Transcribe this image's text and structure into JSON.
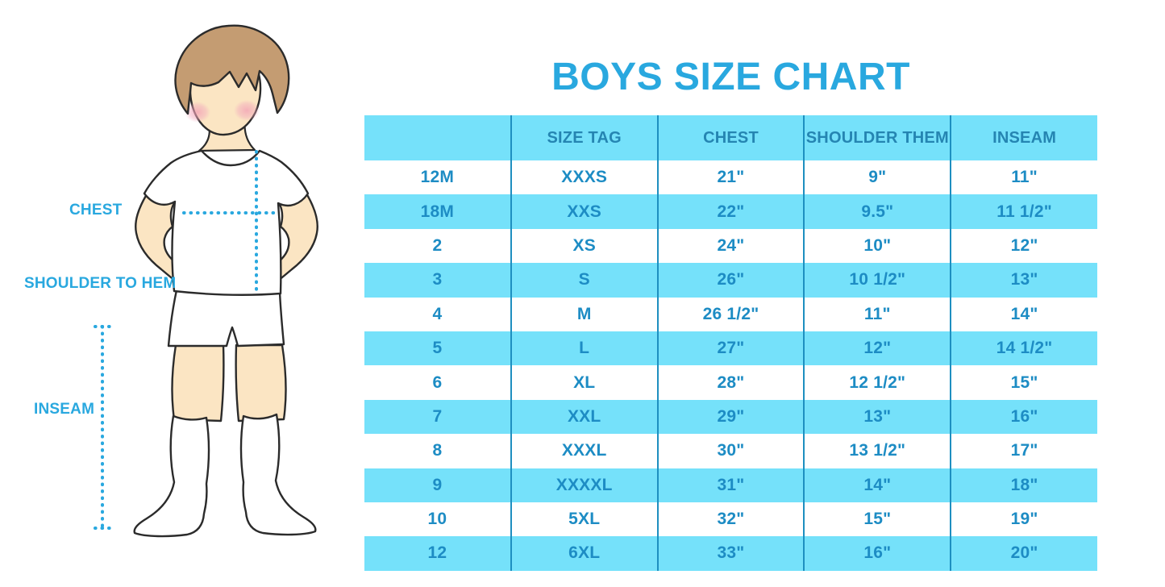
{
  "title": "BOYS SIZE CHART",
  "figure": {
    "description": "boy-illustration",
    "labels": {
      "chest": "CHEST",
      "shoulder_to_hem": "SHOULDER TO HEM",
      "inseam": "INSEAM"
    }
  },
  "table": {
    "headers": [
      "",
      "SIZE TAG",
      "CHEST",
      "SHOULDER THEM",
      "INSEAM"
    ],
    "rows": [
      [
        "12M",
        "XXXS",
        "21\"",
        "9\"",
        "11\""
      ],
      [
        "18M",
        "XXS",
        "22\"",
        "9.5\"",
        "11 1/2\""
      ],
      [
        "2",
        "XS",
        "24\"",
        "10\"",
        "12\""
      ],
      [
        "3",
        "S",
        "26\"",
        "10 1/2\"",
        "13\""
      ],
      [
        "4",
        "M",
        "26 1/2\"",
        "11\"",
        "14\""
      ],
      [
        "5",
        "L",
        "27\"",
        "12\"",
        "14 1/2\""
      ],
      [
        "6",
        "XL",
        "28\"",
        "12 1/2\"",
        "15\""
      ],
      [
        "7",
        "XXL",
        "29\"",
        "13\"",
        "16\""
      ],
      [
        "8",
        "XXXL",
        "30\"",
        "13 1/2\"",
        "17\""
      ],
      [
        "9",
        "XXXXL",
        "31\"",
        "14\"",
        "18\""
      ],
      [
        "10",
        "5XL",
        "32\"",
        "15\"",
        "19\""
      ],
      [
        "12",
        "6XL",
        "33\"",
        "16\"",
        "20\""
      ]
    ]
  },
  "chart_data": {
    "type": "table",
    "title": "BOYS SIZE CHART",
    "columns": [
      "",
      "SIZE TAG",
      "CHEST",
      "SHOULDER THEM",
      "INSEAM"
    ],
    "rows": [
      [
        "12M",
        "XXXS",
        "21\"",
        "9\"",
        "11\""
      ],
      [
        "18M",
        "XXS",
        "22\"",
        "9.5\"",
        "11 1/2\""
      ],
      [
        "2",
        "XS",
        "24\"",
        "10\"",
        "12\""
      ],
      [
        "3",
        "S",
        "26\"",
        "10 1/2\"",
        "13\""
      ],
      [
        "4",
        "M",
        "26 1/2\"",
        "11\"",
        "14\""
      ],
      [
        "5",
        "L",
        "27\"",
        "12\"",
        "14 1/2\""
      ],
      [
        "6",
        "XL",
        "28\"",
        "12 1/2\"",
        "15\""
      ],
      [
        "7",
        "XXL",
        "29\"",
        "13\"",
        "16\""
      ],
      [
        "8",
        "XXXL",
        "30\"",
        "13 1/2\"",
        "17\""
      ],
      [
        "9",
        "XXXXL",
        "31\"",
        "14\"",
        "18\""
      ],
      [
        "10",
        "5XL",
        "32\"",
        "15\"",
        "19\""
      ],
      [
        "12",
        "6XL",
        "33\"",
        "16\"",
        "20\""
      ]
    ]
  },
  "colors": {
    "accent_blue": "#29A8DF",
    "stripe_cyan": "#75E1FA",
    "table_text_blue": "#1D8CC4",
    "header_text_blue": "#2585B2",
    "divider_blue": "#1E8FC0",
    "skin": "#FBE5C3",
    "hair_brown": "#C49C72",
    "cheek_pink": "#F2A9BC",
    "outline_dark": "#2B2B2B"
  }
}
